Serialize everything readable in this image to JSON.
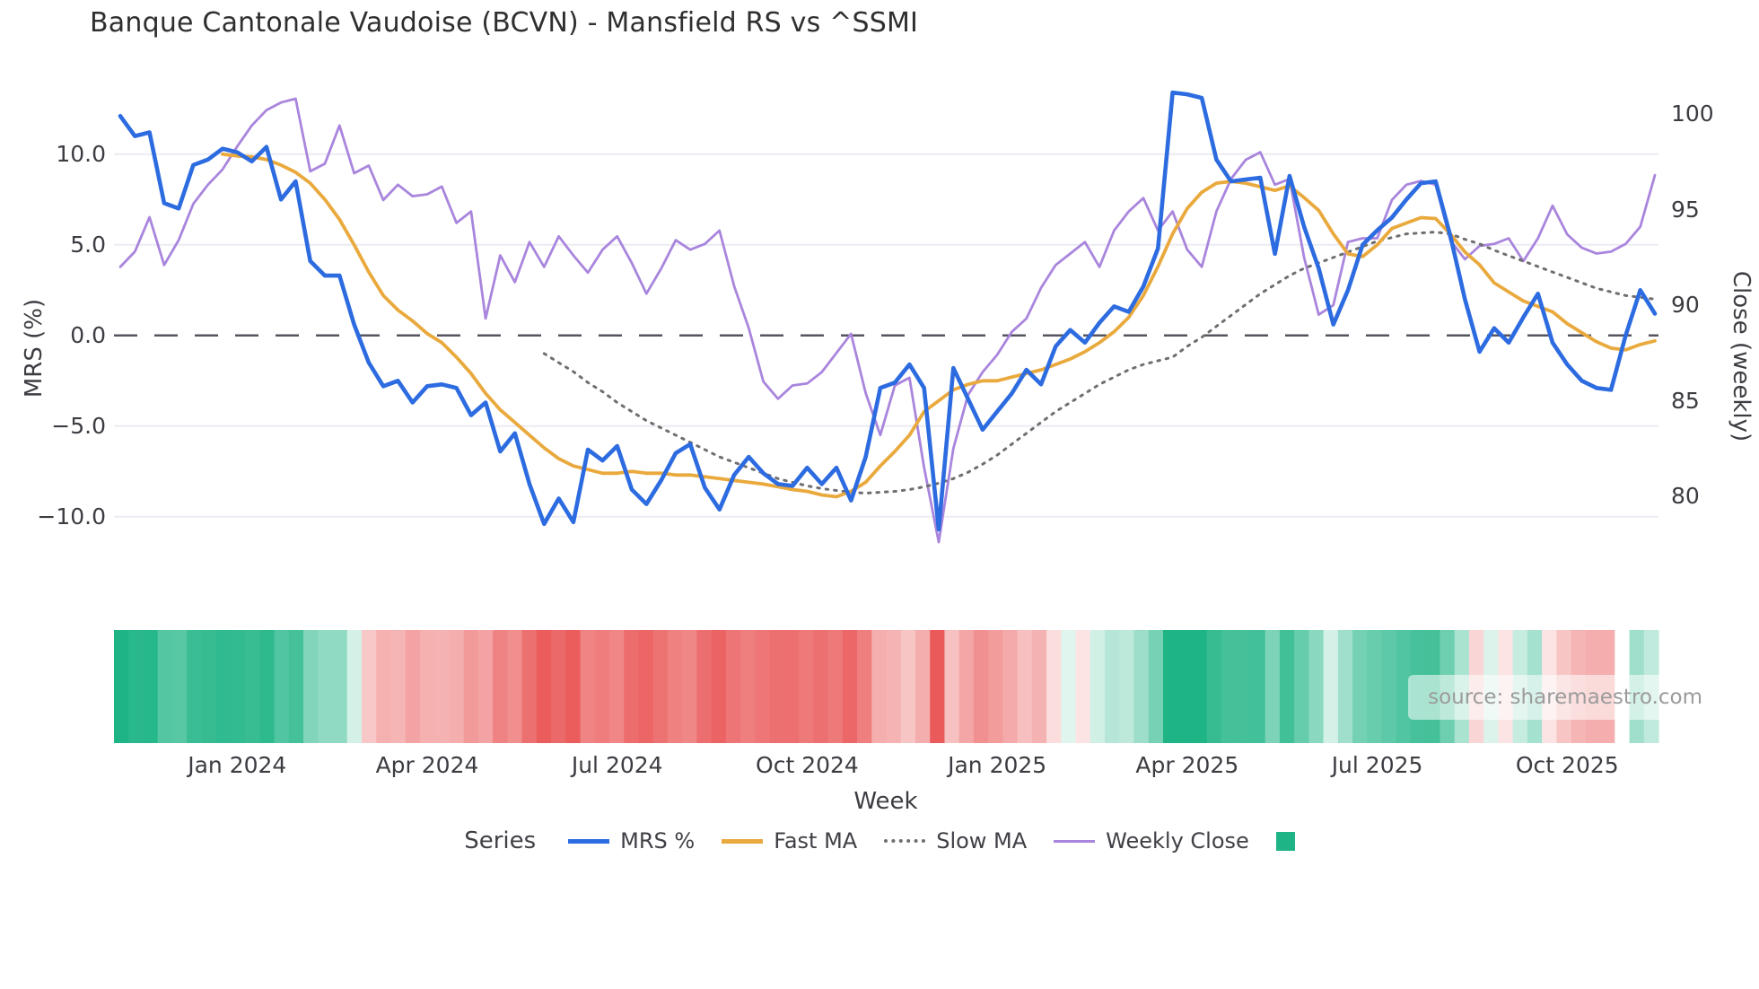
{
  "title": "Banque Cantonale Vaudoise (BCVN) - Mansfield RS vs ^SSMI",
  "source_note": "source: sharemaestro.com",
  "axes": {
    "y_left": {
      "label": "MRS (%)",
      "tick_labels": [
        "10.0",
        "5.0",
        "0.0",
        "−5.0",
        "−10.0"
      ],
      "tick_values": [
        10,
        5,
        0,
        -5,
        -10
      ]
    },
    "y_right": {
      "label": "Close (weekly)",
      "tick_labels": [
        "100",
        "95",
        "90",
        "85",
        "80"
      ],
      "tick_values": [
        100,
        95,
        90,
        85,
        80
      ]
    },
    "x": {
      "label": "Week"
    }
  },
  "legend": {
    "title": "Series",
    "items": [
      {
        "label": "MRS %",
        "color": "#2c6be0",
        "style": "line"
      },
      {
        "label": "Fast MA",
        "color": "#e9a93d",
        "style": "line"
      },
      {
        "label": "Slow MA",
        "color": "#6f6f6f",
        "style": "dotted"
      },
      {
        "label": "Weekly Close",
        "color": "#a985dd",
        "style": "thin-line"
      },
      {
        "label": "",
        "color": "#1eb485",
        "style": "square"
      }
    ]
  },
  "chart_data": {
    "type": "line",
    "x_unit": "week-index",
    "n_weeks": 106,
    "x_tick_weeks": [
      8,
      21,
      34,
      47,
      60,
      73,
      86,
      99
    ],
    "x_tick_labels": [
      "Jan 2024",
      "Apr 2024",
      "Jul 2024",
      "Oct 2024",
      "Jan 2025",
      "Apr 2025",
      "Jul 2025",
      "Oct 2025"
    ],
    "y_left_range": [
      -13.5,
      14.5
    ],
    "y_right_range": [
      78,
      101.5
    ],
    "grid": "horizontal-only",
    "zero_line": {
      "value": 0,
      "axis": "left",
      "color": "#55555f",
      "dash": "long"
    },
    "series": [
      {
        "name": "Weekly Close",
        "axis": "right",
        "color": "#a985dd",
        "width": 2.8,
        "dash": null,
        "values": [
          92.0,
          92.8,
          94.6,
          92.1,
          93.4,
          95.3,
          96.3,
          97.1,
          98.3,
          99.4,
          100.2,
          100.6,
          100.8,
          97.0,
          97.4,
          99.4,
          96.9,
          97.3,
          95.5,
          96.3,
          95.7,
          95.8,
          96.2,
          94.3,
          94.9,
          89.3,
          92.6,
          91.2,
          93.3,
          92.0,
          93.6,
          92.6,
          91.7,
          92.9,
          93.6,
          92.2,
          90.6,
          91.9,
          93.4,
          92.9,
          93.2,
          93.9,
          91.0,
          88.8,
          86.0,
          85.1,
          85.8,
          85.9,
          86.5,
          87.5,
          88.5,
          85.4,
          83.2,
          85.8,
          86.2,
          81.5,
          77.6,
          82.5,
          85.3,
          86.5,
          87.4,
          88.6,
          89.3,
          90.9,
          92.1,
          92.7,
          93.3,
          92.0,
          93.9,
          94.9,
          95.6,
          93.9,
          94.9,
          92.9,
          92.0,
          94.9,
          96.6,
          97.6,
          98.0,
          96.3,
          96.6,
          92.5,
          89.5,
          90.0,
          93.3,
          93.5,
          93.5,
          95.5,
          96.3,
          96.5,
          96.3,
          93.4,
          92.4,
          93.1,
          93.2,
          93.5,
          92.3,
          93.5,
          95.2,
          93.7,
          93.0,
          92.7,
          92.8,
          93.2,
          94.1,
          96.8
        ]
      },
      {
        "name": "Slow MA",
        "axis": "left",
        "color": "#6f6f6f",
        "width": 3,
        "dash": "dotted",
        "values": [
          null,
          null,
          null,
          null,
          null,
          null,
          null,
          null,
          null,
          null,
          null,
          null,
          null,
          null,
          null,
          null,
          null,
          null,
          null,
          null,
          null,
          null,
          null,
          null,
          null,
          null,
          null,
          null,
          null,
          -1.0,
          -1.5,
          -2.0,
          -2.6,
          -3.1,
          -3.7,
          -4.2,
          -4.7,
          -5.1,
          -5.5,
          -5.9,
          -6.3,
          -6.7,
          -7.0,
          -7.3,
          -7.6,
          -7.9,
          -8.1,
          -8.3,
          -8.45,
          -8.55,
          -8.65,
          -8.7,
          -8.65,
          -8.6,
          -8.5,
          -8.35,
          -8.15,
          -7.9,
          -7.55,
          -7.1,
          -6.6,
          -6.0,
          -5.4,
          -4.8,
          -4.2,
          -3.7,
          -3.2,
          -2.7,
          -2.3,
          -1.9,
          -1.6,
          -1.4,
          -1.2,
          -0.6,
          -0.1,
          0.5,
          1.1,
          1.7,
          2.3,
          2.8,
          3.3,
          3.7,
          4.0,
          4.3,
          4.6,
          4.9,
          5.2,
          5.4,
          5.6,
          5.65,
          5.7,
          5.6,
          5.3,
          5.05,
          4.7,
          4.4,
          4.1,
          3.8,
          3.5,
          3.2,
          2.9,
          2.6,
          2.4,
          2.2,
          2.1,
          2.0
        ]
      },
      {
        "name": "Fast MA",
        "axis": "left",
        "color": "#e9a93d",
        "width": 3.8,
        "dash": null,
        "values": [
          null,
          null,
          null,
          null,
          null,
          null,
          null,
          10.0,
          9.9,
          9.85,
          9.7,
          9.4,
          9.0,
          8.4,
          7.5,
          6.4,
          5.0,
          3.5,
          2.2,
          1.4,
          0.8,
          0.1,
          -0.4,
          -1.2,
          -2.1,
          -3.2,
          -4.1,
          -4.8,
          -5.5,
          -6.2,
          -6.8,
          -7.2,
          -7.4,
          -7.6,
          -7.6,
          -7.5,
          -7.6,
          -7.6,
          -7.7,
          -7.7,
          -7.8,
          -7.9,
          -8.0,
          -8.1,
          -8.2,
          -8.35,
          -8.5,
          -8.6,
          -8.8,
          -8.9,
          -8.6,
          -8.1,
          -7.2,
          -6.4,
          -5.5,
          -4.2,
          -3.6,
          -3.0,
          -2.7,
          -2.5,
          -2.5,
          -2.3,
          -2.1,
          -1.9,
          -1.6,
          -1.3,
          -0.9,
          -0.4,
          0.2,
          1.0,
          2.2,
          3.8,
          5.6,
          7.0,
          7.9,
          8.4,
          8.5,
          8.4,
          8.2,
          8.0,
          8.25,
          7.6,
          6.9,
          5.6,
          4.5,
          4.35,
          5.0,
          5.9,
          6.2,
          6.5,
          6.45,
          5.6,
          4.6,
          3.9,
          2.9,
          2.4,
          1.9,
          1.6,
          1.3,
          0.65,
          0.15,
          -0.35,
          -0.7,
          -0.8,
          -0.5,
          -0.3
        ]
      },
      {
        "name": "MRS %",
        "axis": "left",
        "color": "#2c6be0",
        "width": 4.6,
        "dash": null,
        "values": [
          12.1,
          11.0,
          11.2,
          7.3,
          7.0,
          9.4,
          9.7,
          10.3,
          10.1,
          9.6,
          10.4,
          7.5,
          8.5,
          4.1,
          3.3,
          3.3,
          0.6,
          -1.5,
          -2.8,
          -2.5,
          -3.7,
          -2.8,
          -2.7,
          -2.9,
          -4.4,
          -3.7,
          -6.4,
          -5.4,
          -8.2,
          -10.4,
          -9.0,
          -10.3,
          -6.3,
          -6.9,
          -6.1,
          -8.5,
          -9.3,
          -8.0,
          -6.5,
          -6.0,
          -8.4,
          -9.6,
          -7.7,
          -6.7,
          -7.6,
          -8.2,
          -8.3,
          -7.3,
          -8.2,
          -7.3,
          -9.1,
          -6.7,
          -2.9,
          -2.6,
          -1.6,
          -2.9,
          -10.7,
          -1.8,
          -3.5,
          -5.2,
          -4.2,
          -3.2,
          -1.9,
          -2.7,
          -0.6,
          0.3,
          -0.4,
          0.7,
          1.6,
          1.3,
          2.7,
          4.8,
          13.4,
          13.3,
          13.1,
          9.7,
          8.5,
          8.6,
          8.7,
          4.5,
          8.8,
          6.0,
          3.7,
          0.6,
          2.5,
          5.0,
          5.8,
          6.5,
          7.5,
          8.4,
          8.5,
          5.5,
          2.0,
          -0.9,
          0.4,
          -0.4,
          1.0,
          2.3,
          -0.4,
          -1.6,
          -2.5,
          -2.9,
          -3.0,
          0.0,
          2.5,
          1.2
        ]
      }
    ],
    "heatmap": {
      "description": "weekly strip colored by MRS % sign and magnitude",
      "source_series": "MRS %",
      "positive_color": "#1eb485",
      "negative_color": "#e94f4f",
      "neutral_color": "#ffffff"
    }
  }
}
